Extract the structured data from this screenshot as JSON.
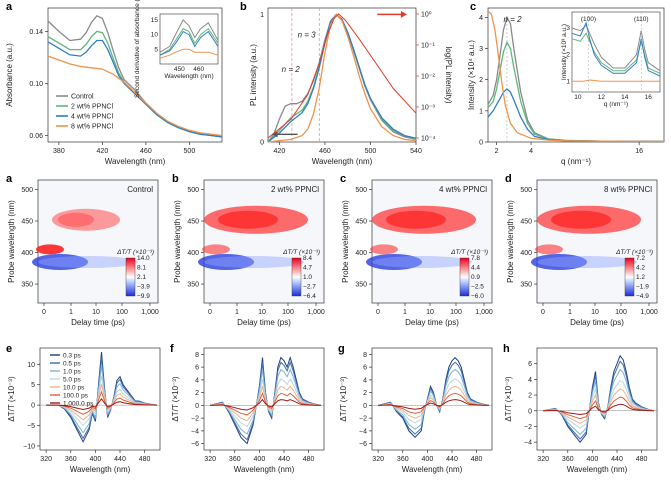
{
  "colors": {
    "control": "#8a8a8a",
    "wt2": "#5fb77a",
    "wt4": "#2f7fc4",
    "wt8": "#f0924a",
    "red_axis": "#e23b2e"
  },
  "chart_data": [
    {
      "id": "a",
      "type": "line",
      "panel": "a",
      "xlabel": "Wavelength (nm)",
      "ylabel": "Absorbance (a.u.)",
      "xlim": [
        370,
        530
      ],
      "ylim": [
        0.055,
        0.158
      ],
      "xticks": [
        "380",
        "420",
        "460",
        "500"
      ],
      "yticks": [
        "0.06",
        "0.10",
        "0.14"
      ],
      "legend": [
        "Control",
        "2 wt% PPNCl",
        "4 wt% PPNCl",
        "8 wt% PPNCl"
      ],
      "series": [
        {
          "name": "Control",
          "x": [
            370,
            380,
            390,
            400,
            405,
            410,
            415,
            420,
            425,
            430,
            435,
            440,
            450,
            460,
            470,
            480,
            490,
            500,
            510,
            520,
            530
          ],
          "values": [
            0.148,
            0.14,
            0.133,
            0.134,
            0.139,
            0.147,
            0.152,
            0.15,
            0.139,
            0.125,
            0.112,
            0.103,
            0.095,
            0.085,
            0.077,
            0.07,
            0.066,
            0.063,
            0.061,
            0.06,
            0.059
          ]
        },
        {
          "name": "2 wt% PPNCl",
          "x": [
            370,
            380,
            390,
            400,
            405,
            410,
            415,
            420,
            425,
            430,
            435,
            440,
            450,
            460,
            470,
            480,
            490,
            500,
            510,
            520,
            530
          ],
          "values": [
            0.136,
            0.131,
            0.126,
            0.126,
            0.13,
            0.136,
            0.14,
            0.139,
            0.131,
            0.119,
            0.108,
            0.101,
            0.093,
            0.084,
            0.076,
            0.07,
            0.066,
            0.063,
            0.061,
            0.06,
            0.059
          ]
        },
        {
          "name": "4 wt% PPNCl",
          "x": [
            370,
            380,
            390,
            400,
            405,
            410,
            415,
            420,
            425,
            430,
            435,
            440,
            450,
            460,
            470,
            480,
            490,
            500,
            510,
            520,
            530
          ],
          "values": [
            0.132,
            0.127,
            0.122,
            0.121,
            0.124,
            0.129,
            0.133,
            0.133,
            0.126,
            0.116,
            0.106,
            0.1,
            0.092,
            0.084,
            0.076,
            0.07,
            0.066,
            0.063,
            0.061,
            0.06,
            0.059
          ]
        },
        {
          "name": "8 wt% PPNCl",
          "x": [
            370,
            380,
            390,
            400,
            410,
            420,
            430,
            440,
            450,
            460,
            470,
            480,
            490,
            500,
            510,
            520,
            530
          ],
          "values": [
            0.121,
            0.118,
            0.115,
            0.113,
            0.112,
            0.111,
            0.107,
            0.101,
            0.093,
            0.085,
            0.077,
            0.071,
            0.067,
            0.064,
            0.062,
            0.061,
            0.06
          ]
        }
      ],
      "inset": {
        "xlabel": "Wavelength (nm)",
        "ylabel": "Second derivative of absorbance (×10⁻⁵)",
        "xticks": [
          "450",
          "460"
        ],
        "yticks": [
          "5",
          "10",
          "15"
        ]
      }
    },
    {
      "id": "b",
      "type": "line",
      "panel": "b",
      "xlabel": "Wavelength (nm)",
      "ylabel": "PL intensity (a.u.)",
      "ylabel_right": "log(PL intensity)",
      "xlim": [
        410,
        540
      ],
      "ylim": [
        0,
        1.05
      ],
      "xticks": [
        "420",
        "460",
        "500",
        "540"
      ],
      "yticks": [
        "0",
        "1"
      ],
      "yticks_right": [
        "10⁰",
        "10⁻¹",
        "10⁻²",
        "10⁻³",
        "10⁻⁴"
      ],
      "annotations": [
        "n = 2",
        "n = 3"
      ],
      "series": [
        {
          "name": "Control",
          "x": [
            410,
            415,
            420,
            425,
            430,
            435,
            440,
            445,
            450,
            455,
            460,
            465,
            470,
            475,
            480,
            485,
            490,
            495,
            500,
            510,
            520,
            530,
            540
          ],
          "values": [
            0.0,
            0.06,
            0.18,
            0.28,
            0.3,
            0.3,
            0.32,
            0.38,
            0.48,
            0.62,
            0.8,
            0.95,
            1.0,
            0.96,
            0.85,
            0.72,
            0.58,
            0.44,
            0.33,
            0.17,
            0.08,
            0.04,
            0.02
          ]
        },
        {
          "name": "2 wt% PPNCl",
          "x": [
            410,
            420,
            430,
            440,
            445,
            450,
            455,
            460,
            465,
            470,
            475,
            480,
            485,
            490,
            495,
            500,
            510,
            520,
            530,
            540
          ],
          "values": [
            0.0,
            0.09,
            0.19,
            0.25,
            0.32,
            0.43,
            0.59,
            0.78,
            0.94,
            1.0,
            0.96,
            0.86,
            0.73,
            0.59,
            0.45,
            0.34,
            0.18,
            0.09,
            0.05,
            0.02
          ]
        },
        {
          "name": "4 wt% PPNCl",
          "x": [
            410,
            420,
            430,
            440,
            445,
            450,
            455,
            460,
            465,
            470,
            475,
            480,
            485,
            490,
            495,
            500,
            510,
            520,
            530,
            540
          ],
          "values": [
            0.0,
            0.07,
            0.16,
            0.23,
            0.3,
            0.42,
            0.58,
            0.78,
            0.94,
            1.0,
            0.96,
            0.86,
            0.73,
            0.59,
            0.45,
            0.34,
            0.19,
            0.1,
            0.05,
            0.03
          ]
        },
        {
          "name": "8 wt% PPNCl",
          "x": [
            410,
            430,
            440,
            445,
            450,
            455,
            460,
            465,
            470,
            475,
            480,
            485,
            490,
            495,
            500,
            510,
            520,
            530,
            540
          ],
          "values": [
            0.0,
            0.02,
            0.05,
            0.1,
            0.22,
            0.42,
            0.7,
            0.92,
            1.0,
            0.95,
            0.83,
            0.68,
            0.52,
            0.38,
            0.26,
            0.12,
            0.05,
            0.02,
            0.01
          ]
        }
      ]
    },
    {
      "id": "c",
      "type": "line",
      "panel": "c",
      "xlabel": "q (nm⁻¹)",
      "ylabel": "Intensity (×10⁴ a.u.)",
      "xlim": [
        1.5,
        17.5
      ],
      "ylim": [
        0,
        4.3
      ],
      "xticks": [
        "2",
        "4",
        "16"
      ],
      "yticks": [
        "0",
        "1",
        "2",
        "3",
        "4"
      ],
      "annotations": [
        "n = 2"
      ],
      "inset": {
        "xlabel": "q (nm⁻¹)",
        "ylabel": "Intensity (×10³ a.u.)",
        "xticks": [
          "10",
          "12",
          "14",
          "16"
        ],
        "yticks": [
          "1",
          "2",
          "3"
        ],
        "labels": [
          "(100)",
          "(110)"
        ]
      },
      "series": [
        {
          "name": "Control",
          "x": [
            1.5,
            1.8,
            2.0,
            2.2,
            2.4,
            2.6,
            2.8,
            3.0,
            3.4,
            3.8,
            4.2,
            5,
            6,
            8,
            17.5
          ],
          "values": [
            1.2,
            1.5,
            2.0,
            2.8,
            3.6,
            4.0,
            3.8,
            3.0,
            1.6,
            0.7,
            0.3,
            0.1,
            0.05,
            0.03,
            0.02
          ]
        },
        {
          "name": "2 wt% PPNCl",
          "x": [
            1.5,
            1.8,
            2.0,
            2.2,
            2.4,
            2.6,
            2.8,
            3.0,
            3.4,
            3.8,
            4.2,
            5,
            6,
            8,
            17.5
          ],
          "values": [
            1.1,
            1.3,
            1.7,
            2.3,
            2.9,
            3.2,
            3.0,
            2.4,
            1.3,
            0.6,
            0.25,
            0.1,
            0.05,
            0.03,
            0.02
          ]
        },
        {
          "name": "4 wt% PPNCl",
          "x": [
            1.5,
            1.8,
            2.0,
            2.2,
            2.4,
            2.6,
            2.8,
            3.0,
            3.4,
            3.8,
            4.2,
            5,
            6,
            8,
            17.5
          ],
          "values": [
            0.8,
            1.0,
            1.2,
            1.4,
            1.6,
            1.7,
            1.6,
            1.35,
            0.8,
            0.4,
            0.18,
            0.08,
            0.04,
            0.03,
            0.02
          ]
        },
        {
          "name": "8 wt% PPNCl",
          "x": [
            1.5,
            1.7,
            1.9,
            2.1,
            2.3,
            2.5,
            2.8,
            3.2,
            4,
            5,
            6,
            8,
            17.5
          ],
          "values": [
            4.2,
            4.1,
            3.6,
            2.8,
            1.9,
            1.2,
            0.6,
            0.3,
            0.12,
            0.06,
            0.04,
            0.03,
            0.02
          ]
        }
      ]
    }
  ],
  "maps": [
    {
      "panel": "a",
      "title": "Control",
      "ylabel": "Probe wavelength (nm)",
      "xlabel": "Delay time (ps)",
      "yticks": [
        "500",
        "450",
        "400",
        "350"
      ],
      "xticks": [
        "0",
        "1",
        "10",
        "100",
        "1,000"
      ],
      "cbar_label": "ΔT/T (×10⁻³)",
      "cbar_ticks": [
        "14.0",
        "8.1",
        "2.1",
        "−3.9",
        "−9.9"
      ]
    },
    {
      "panel": "b",
      "title": "2 wt% PPNCl",
      "ylabel": "Probe wavelength (nm)",
      "xlabel": "Delay time (ps)",
      "yticks": [
        "500",
        "450",
        "400",
        "350"
      ],
      "xticks": [
        "0",
        "1",
        "10",
        "100",
        "1,000"
      ],
      "cbar_label": "ΔT/T (×10⁻³)",
      "cbar_ticks": [
        "8.4",
        "4.7",
        "1.0",
        "−2.7",
        "−6.4"
      ]
    },
    {
      "panel": "c",
      "title": "4 wt% PPNCl",
      "ylabel": "Probe wavelength (nm)",
      "xlabel": "Delay time (ps)",
      "yticks": [
        "500",
        "450",
        "400",
        "350"
      ],
      "xticks": [
        "0",
        "1",
        "10",
        "100",
        "1,000"
      ],
      "cbar_label": "ΔT/T (×10⁻³)",
      "cbar_ticks": [
        "7.8",
        "4.4",
        "0.9",
        "−2.5",
        "−6.0"
      ]
    },
    {
      "panel": "d",
      "title": "8 wt% PPNCl",
      "ylabel": "Probe wavelength (nm)",
      "xlabel": "Delay time (ps)",
      "yticks": [
        "500",
        "450",
        "400",
        "350"
      ],
      "xticks": [
        "0",
        "1",
        "10",
        "100",
        "1,000"
      ],
      "cbar_label": "ΔT/T (×10⁻³)",
      "cbar_ticks": [
        "7.2",
        "4.2",
        "1.2",
        "−1.9",
        "−4.9"
      ]
    }
  ],
  "spectra": [
    {
      "panel": "e",
      "ylabel": "ΔT/T (×10⁻³)",
      "xlabel": "Wavelength (nm)",
      "xticks": [
        "320",
        "360",
        "400",
        "440",
        "480"
      ],
      "yticks": [
        "10",
        "5",
        "0",
        "−5",
        "−10"
      ],
      "ylim": [
        -11,
        14
      ],
      "legend": [
        "0.3 ps",
        "0.5 ps",
        "1.0 ps",
        "5.0 ps",
        "10.0 ps",
        "100.0 ps",
        "1,000.0 ps"
      ]
    },
    {
      "panel": "f",
      "ylabel": "ΔT/T (×10⁻³)",
      "xlabel": "Wavelength (nm)",
      "xticks": [
        "320",
        "360",
        "400",
        "440",
        "480"
      ],
      "yticks": [
        "8",
        "6",
        "4",
        "2",
        "0",
        "−2",
        "−4",
        "−6"
      ],
      "ylim": [
        -7,
        9
      ]
    },
    {
      "panel": "g",
      "ylabel": "ΔT/T (×10⁻³)",
      "xlabel": "Wavelength (nm)",
      "xticks": [
        "320",
        "360",
        "400",
        "440",
        "480"
      ],
      "yticks": [
        "8",
        "6",
        "4",
        "2",
        "0",
        "−2",
        "−4",
        "−6"
      ],
      "ylim": [
        -7,
        9
      ]
    },
    {
      "panel": "h",
      "ylabel": "ΔT/T (×10⁻³)",
      "xlabel": "Wavelength (nm)",
      "xticks": [
        "320",
        "360",
        "400",
        "440",
        "480"
      ],
      "yticks": [
        "6",
        "4",
        "2",
        "0",
        "−2",
        "−4"
      ],
      "ylim": [
        -5,
        8
      ]
    }
  ],
  "spectra_colors": [
    "#1f3f7a",
    "#3a6fb0",
    "#7fb2d6",
    "#b7d7e8",
    "#f2b28c",
    "#e0603a",
    "#9b1c1c"
  ]
}
